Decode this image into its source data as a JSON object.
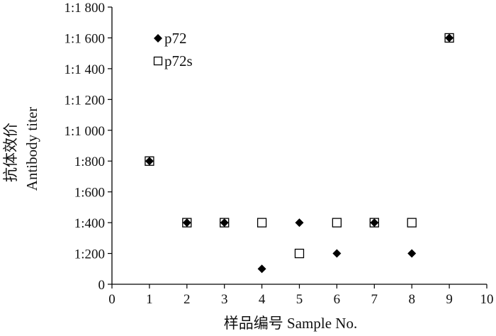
{
  "chart_data": {
    "type": "scatter",
    "xlabel": "样品编号  Sample No.",
    "ylabel_cn": "抗体效价",
    "ylabel_en": "Antibody titer",
    "xlim": [
      0,
      10
    ],
    "ylim": [
      0,
      1800
    ],
    "x_ticks": [
      "0",
      "1",
      "2",
      "3",
      "4",
      "5",
      "6",
      "7",
      "8",
      "9",
      "10"
    ],
    "y_ticks": [
      {
        "value": 0,
        "label": "0"
      },
      {
        "value": 200,
        "label": "1:200"
      },
      {
        "value": 400,
        "label": "1:400"
      },
      {
        "value": 600,
        "label": "1:600"
      },
      {
        "value": 800,
        "label": "1:800"
      },
      {
        "value": 1000,
        "label": "1:1 000"
      },
      {
        "value": 1200,
        "label": "1:1 200"
      },
      {
        "value": 1400,
        "label": "1:1 400"
      },
      {
        "value": 1600,
        "label": "1:1 600"
      },
      {
        "value": 1800,
        "label": "1:1 800"
      }
    ],
    "legend_position": "top-left",
    "grid": false,
    "series": [
      {
        "name": "p72",
        "marker": "filled-diamond",
        "color": "#000000",
        "x": [
          1,
          2,
          3,
          4,
          5,
          6,
          7,
          8,
          9
        ],
        "y": [
          800,
          400,
          400,
          100,
          400,
          200,
          400,
          200,
          1600
        ]
      },
      {
        "name": "p72s",
        "marker": "open-square",
        "color": "#000000",
        "x": [
          1,
          2,
          3,
          4,
          5,
          6,
          7,
          8,
          9
        ],
        "y": [
          800,
          400,
          400,
          400,
          200,
          400,
          400,
          400,
          1600
        ]
      }
    ]
  }
}
